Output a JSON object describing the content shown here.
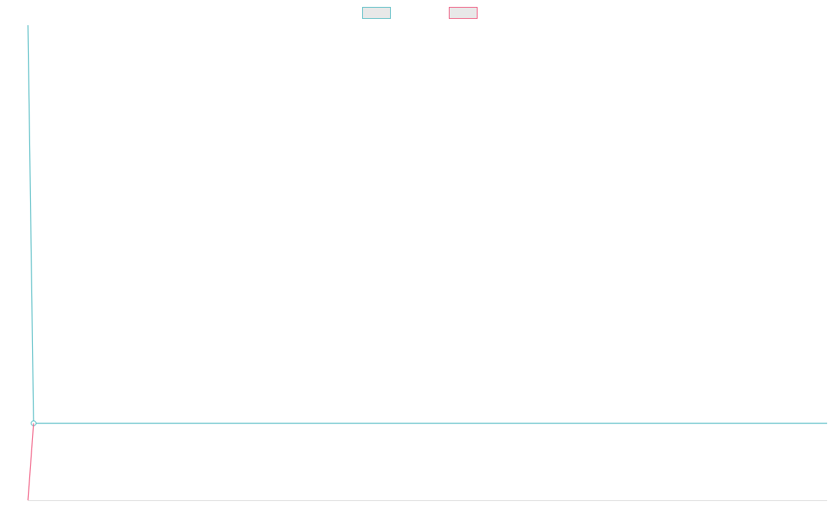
{
  "chart_data": {
    "type": "line",
    "title": "",
    "xlabel": "",
    "ylabel": "",
    "grid": false,
    "legend_position": "top-center",
    "xlim": [
      0,
      142
    ],
    "ylim": [
      0,
      100
    ],
    "series": [
      {
        "name": "",
        "color": "#4bb8c0",
        "fill": "#e8e8e8",
        "x": [
          0,
          1,
          142
        ],
        "y": [
          100,
          16.2,
          16.2
        ],
        "markers": [
          {
            "x": 1,
            "y": 16.2,
            "shape": "circle"
          }
        ]
      },
      {
        "name": "",
        "color": "#ef4f78",
        "fill": "#e8e8e8",
        "x": [
          0,
          1
        ],
        "y": [
          0,
          16.2
        ],
        "markers": []
      }
    ]
  }
}
